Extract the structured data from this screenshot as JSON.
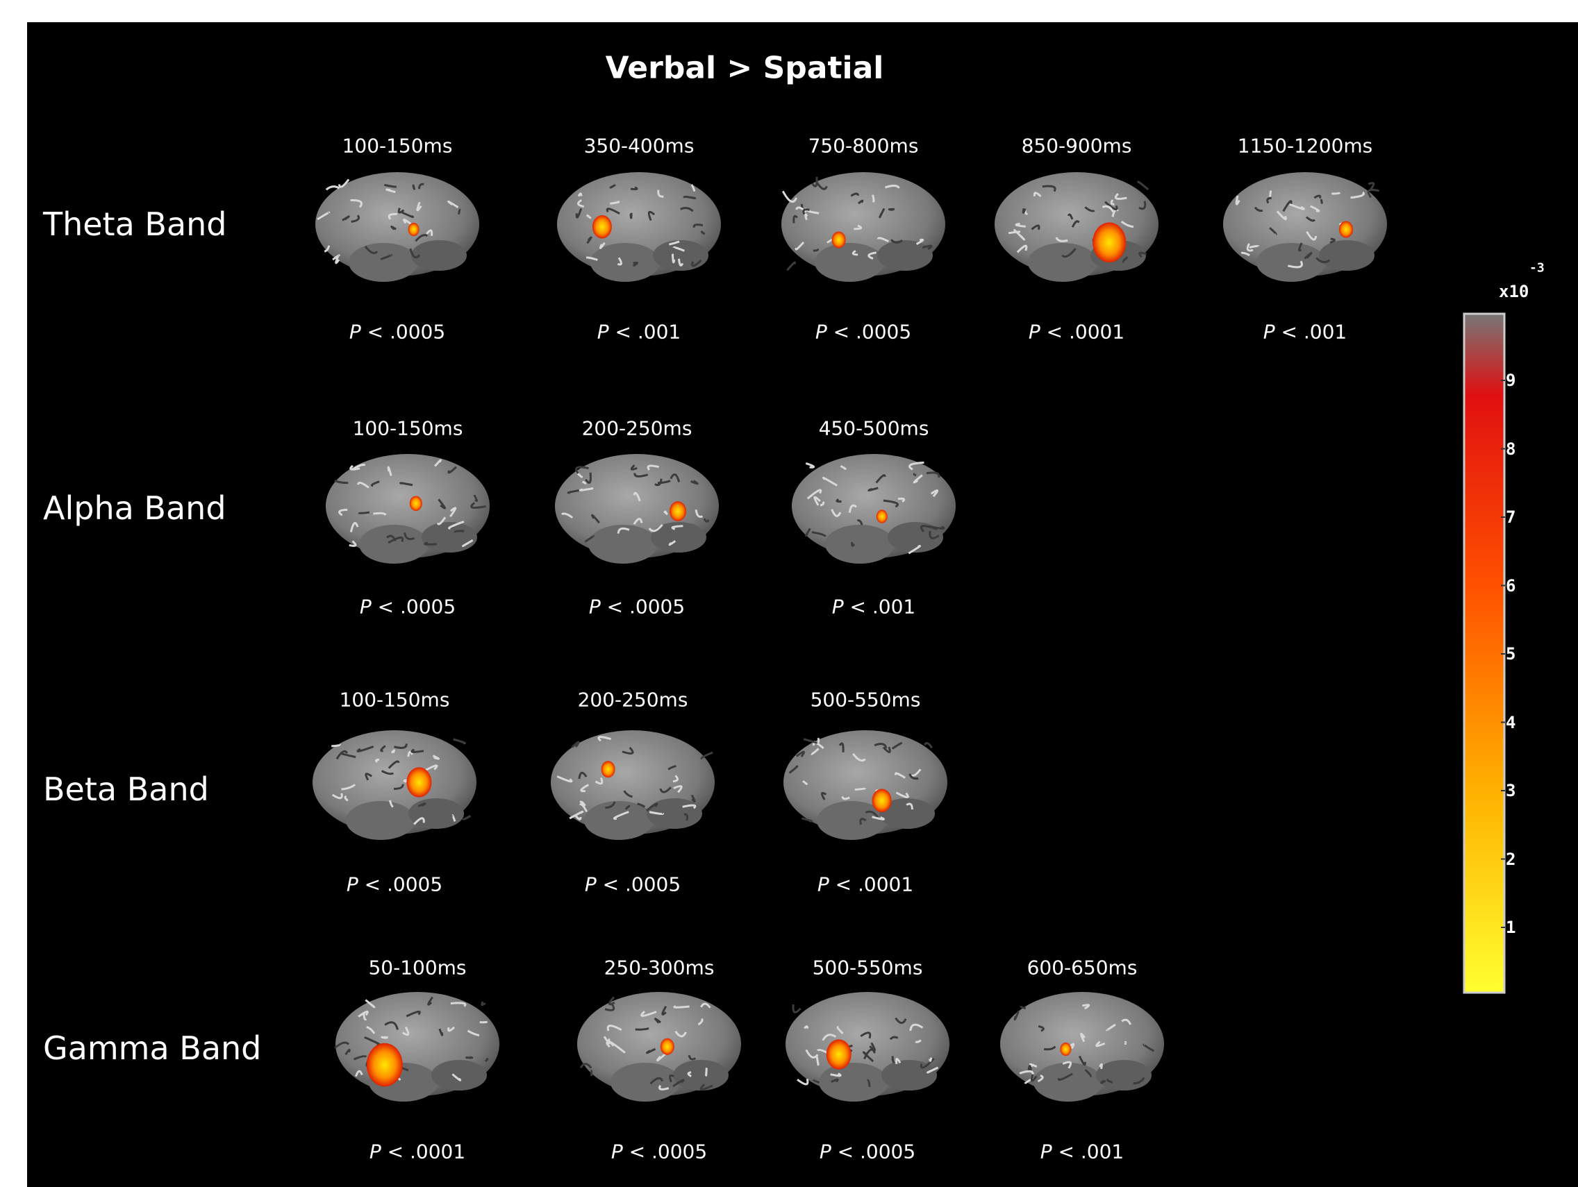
{
  "title": "Verbal > Spatial",
  "rows": [
    {
      "label": "Theta Band",
      "panels": [
        {
          "time": "100-150ms",
          "p": "P < .0005"
        },
        {
          "time": "350-400ms",
          "p": "P < .001"
        },
        {
          "time": "750-800ms",
          "p": "P < .0005"
        },
        {
          "time": "850-900ms",
          "p": "P < .0001"
        },
        {
          "time": "1150-1200ms",
          "p": "P < .001"
        }
      ]
    },
    {
      "label": "Alpha Band",
      "panels": [
        {
          "time": "100-150ms",
          "p": "P < .0005"
        },
        {
          "time": "200-250ms",
          "p": "P < .0005"
        },
        {
          "time": "450-500ms",
          "p": "P < .001"
        }
      ]
    },
    {
      "label": "Beta Band",
      "panels": [
        {
          "time": "100-150ms",
          "p": "P < .0005"
        },
        {
          "time": "200-250ms",
          "p": "P < .0005"
        },
        {
          "time": "500-550ms",
          "p": "P < .0001"
        }
      ]
    },
    {
      "label": "Gamma Band",
      "panels": [
        {
          "time": "50-100ms",
          "p": "P < .0001"
        },
        {
          "time": "250-300ms",
          "p": "P < .0005"
        },
        {
          "time": "500-550ms",
          "p": "P < .0005"
        },
        {
          "time": "600-650ms",
          "p": "P < .001"
        }
      ]
    }
  ],
  "colorbar": {
    "base": "x10",
    "exponent": "-3",
    "ticks": [
      1,
      2,
      3,
      4,
      5,
      6,
      7,
      8,
      9
    ]
  }
}
